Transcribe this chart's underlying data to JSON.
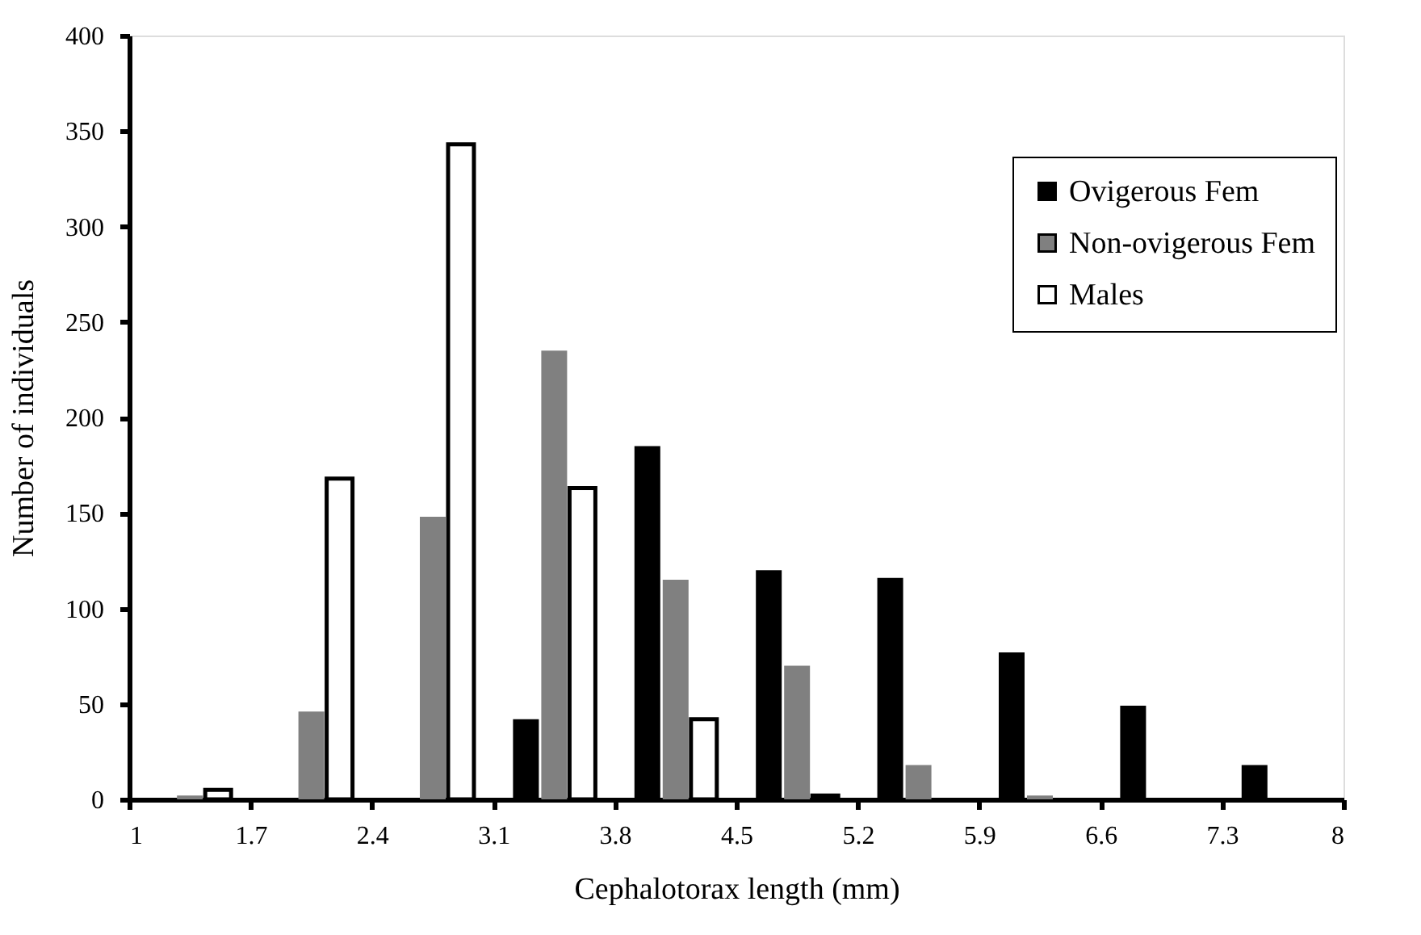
{
  "chart_data": {
    "type": "bar",
    "xlabel": "Cephalotorax length (mm)",
    "ylabel": "Number of individuals",
    "x": [
      1.35,
      2.05,
      2.75,
      3.45,
      4.15,
      4.85,
      5.55,
      6.25,
      6.95,
      7.65
    ],
    "series": [
      {
        "name": "Ovigerous Fem",
        "color": "#000000",
        "values": [
          null,
          null,
          null,
          42,
          185,
          120,
          116,
          77,
          49,
          18
        ]
      },
      {
        "name": "Non-ovigerous Fem",
        "color": "#808080",
        "values": [
          2,
          46,
          148,
          235,
          115,
          70,
          18,
          2,
          null,
          null
        ]
      },
      {
        "name": "Males",
        "color": "#ffffff",
        "values": [
          5,
          168,
          343,
          163,
          42,
          2,
          null,
          null,
          null,
          null
        ]
      }
    ],
    "xlim": [
      1,
      8
    ],
    "xticks": [
      1,
      1.7,
      2.4,
      3.1,
      3.8,
      4.5,
      5.2,
      5.9,
      6.6,
      7.3,
      8
    ],
    "ylim": [
      0,
      400
    ],
    "yticks": [
      0,
      50,
      100,
      150,
      200,
      250,
      300,
      350,
      400
    ],
    "grid": false,
    "legend": "right"
  }
}
